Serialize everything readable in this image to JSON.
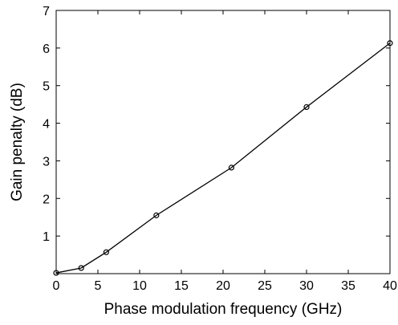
{
  "chart_data": {
    "type": "line",
    "title": "",
    "xlabel": "Phase modulation frequency (GHz)",
    "ylabel": "Gain penalty (dB)",
    "xlim": [
      0,
      40
    ],
    "ylim": [
      0,
      7
    ],
    "xticks": [
      0,
      5,
      10,
      15,
      20,
      25,
      30,
      35,
      40
    ],
    "yticks": [
      1,
      2,
      3,
      4,
      5,
      6,
      7
    ],
    "grid": false,
    "legend": "none",
    "marker": "open-circle",
    "colors": {
      "line": "#000000",
      "axes": "#000000",
      "background": "#ffffff"
    },
    "series": [
      {
        "x": [
          0,
          3,
          6,
          12,
          21,
          30,
          40
        ],
        "y": [
          0.02,
          0.15,
          0.57,
          1.55,
          2.82,
          4.43,
          6.13
        ]
      }
    ]
  }
}
